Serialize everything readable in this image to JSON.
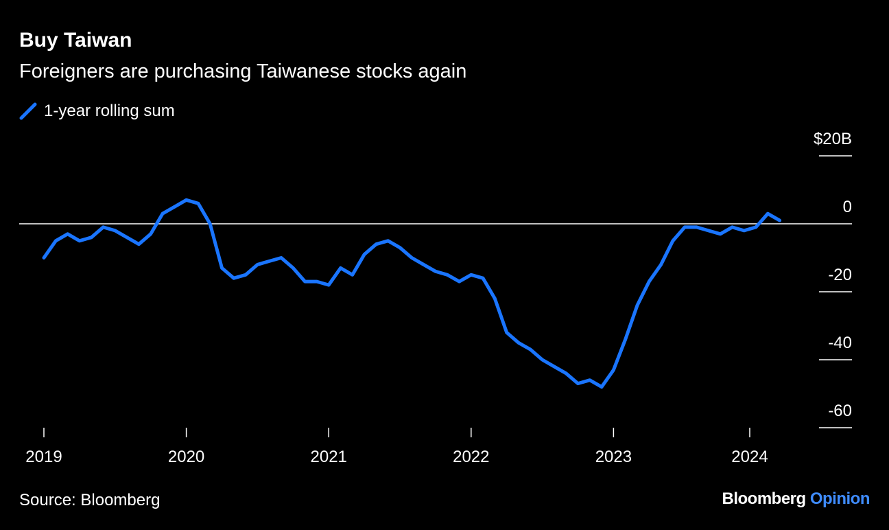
{
  "title": "Buy Taiwan",
  "subtitle": "Foreigners are purchasing Taiwanese stocks again",
  "legend": {
    "label": "1-year rolling sum",
    "color": "#1a75ff"
  },
  "source": "Source: Bloomberg",
  "brand": {
    "name": "Bloomberg",
    "suffix": "Opinion"
  },
  "chart_data": {
    "type": "line",
    "title": "Buy Taiwan",
    "subtitle": "Foreigners are purchasing Taiwanese stocks again",
    "xlabel": "",
    "ylabel": "",
    "x_ticks": [
      "2019",
      "2020",
      "2021",
      "2022",
      "2023",
      "2024"
    ],
    "y_ticks": [
      "$20B",
      "0",
      "-20",
      "-40",
      "-60"
    ],
    "y_tick_values": [
      20,
      0,
      -20,
      -40,
      -60
    ],
    "xlim": [
      "2019-01",
      "2024-03"
    ],
    "ylim": [
      -60,
      20
    ],
    "grid": false,
    "zero_line": true,
    "legend_position": "top-left",
    "series": [
      {
        "name": "1-year rolling sum",
        "color": "#1a75ff",
        "x": [
          "2019-01",
          "2019-02",
          "2019-03",
          "2019-04",
          "2019-05",
          "2019-06",
          "2019-07",
          "2019-08",
          "2019-09",
          "2019-10",
          "2019-11",
          "2019-12",
          "2020-01",
          "2020-02",
          "2020-03",
          "2020-04",
          "2020-05",
          "2020-06",
          "2020-07",
          "2020-08",
          "2020-09",
          "2020-10",
          "2020-11",
          "2020-12",
          "2021-01",
          "2021-02",
          "2021-03",
          "2021-04",
          "2021-05",
          "2021-06",
          "2021-07",
          "2021-08",
          "2021-09",
          "2021-10",
          "2021-11",
          "2021-12",
          "2022-01",
          "2022-02",
          "2022-03",
          "2022-04",
          "2022-05",
          "2022-06",
          "2022-07",
          "2022-08",
          "2022-09",
          "2022-10",
          "2022-11",
          "2022-12",
          "2023-01",
          "2023-02",
          "2023-03",
          "2023-04",
          "2023-05",
          "2023-06",
          "2023-07",
          "2023-08",
          "2023-09",
          "2023-10",
          "2023-11",
          "2023-12",
          "2024-01",
          "2024-02",
          "2024-03"
        ],
        "values": [
          -10,
          -5,
          -3,
          -5,
          -4,
          -1,
          -2,
          -4,
          -6,
          -3,
          3,
          5,
          7,
          6,
          0,
          -13,
          -16,
          -15,
          -12,
          -11,
          -10,
          -13,
          -17,
          -17,
          -18,
          -13,
          -15,
          -9,
          -6,
          -5,
          -7,
          -10,
          -12,
          -14,
          -15,
          -17,
          -15,
          -16,
          -22,
          -32,
          -35,
          -37,
          -40,
          -42,
          -44,
          -47,
          -46,
          -48,
          -43,
          -34,
          -24,
          -17,
          -12,
          -5,
          -1,
          -1,
          -2,
          -3,
          -1,
          -2,
          -1,
          3,
          1
        ]
      }
    ]
  }
}
